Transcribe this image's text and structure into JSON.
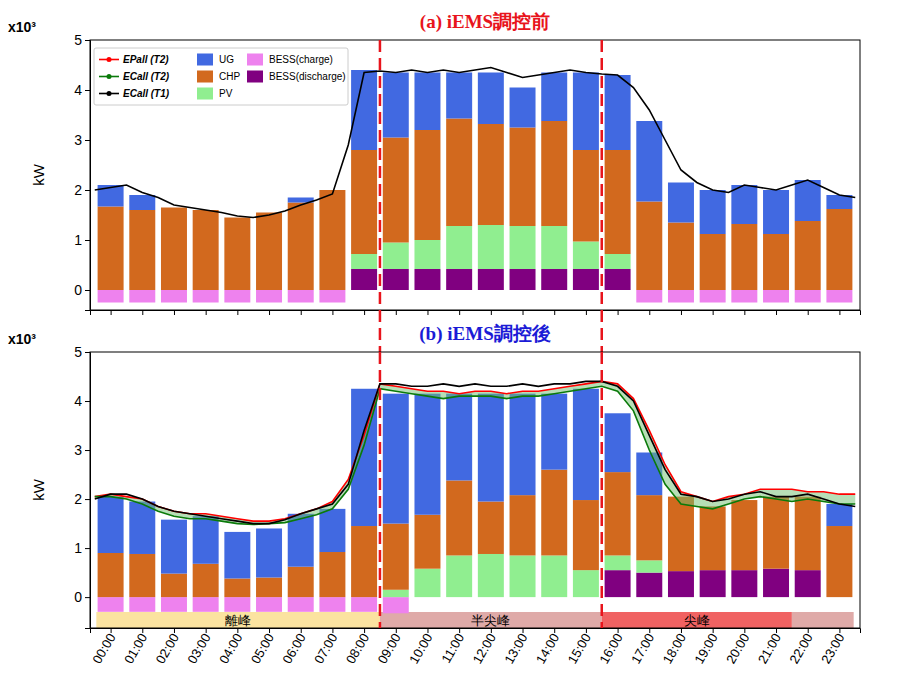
{
  "chart_data": [
    {
      "type": "bar",
      "title": "(a) iEMS調控前",
      "ylabel": "kW",
      "annotations": [
        "x10³"
      ],
      "stacked": true,
      "legend": "upper left",
      "tick_labels": "y",
      "categories": [
        "00:00",
        "01:00",
        "02:00",
        "03:00",
        "04:00",
        "05:00",
        "06:00",
        "07:00",
        "08:00",
        "09:00",
        "10:00",
        "11:00",
        "12:00",
        "13:00",
        "14:00",
        "15:00",
        "16:00",
        "17:00",
        "18:00",
        "19:00",
        "20:00",
        "21:00",
        "22:00",
        "23:00"
      ],
      "xlim": [
        -0.65,
        23.65
      ],
      "ylim": [
        -0.4,
        5
      ],
      "yticks": [
        0,
        1,
        2,
        3,
        4,
        5
      ],
      "vlines": [
        8.5,
        15.5
      ],
      "series": [
        {
          "name": "EPall (T2)",
          "type": "line",
          "color": "#ff0000",
          "x": [],
          "values": []
        },
        {
          "name": "ECall (T2)",
          "type": "line",
          "color": "#0a7a0a",
          "x": [],
          "values": []
        },
        {
          "name": "ECall (T1)",
          "type": "line",
          "color": "#000000",
          "x": [
            -0.5,
            0,
            0.5,
            1,
            1.5,
            2,
            2.5,
            3,
            3.5,
            4,
            4.5,
            5,
            5.5,
            6,
            6.5,
            7,
            7.5,
            8,
            8.5,
            9,
            9.5,
            10,
            10.5,
            11,
            11.5,
            12,
            12.5,
            13,
            13.5,
            14,
            14.5,
            15,
            15.5,
            16,
            16.5,
            17,
            17.5,
            18,
            18.5,
            19,
            19.5,
            20,
            20.5,
            21,
            21.5,
            22,
            22.5,
            23,
            23.5
          ],
          "values": [
            2.0,
            2.05,
            2.1,
            1.95,
            1.85,
            1.7,
            1.65,
            1.6,
            1.55,
            1.48,
            1.45,
            1.5,
            1.58,
            1.7,
            1.8,
            1.92,
            2.9,
            4.35,
            4.38,
            4.35,
            4.4,
            4.35,
            4.4,
            4.35,
            4.4,
            4.45,
            4.35,
            4.25,
            4.3,
            4.35,
            4.4,
            4.35,
            4.32,
            4.3,
            4.05,
            3.6,
            3.0,
            2.4,
            2.15,
            2.0,
            1.95,
            2.1,
            2.05,
            2.0,
            2.1,
            2.2,
            2.05,
            1.9,
            1.85
          ]
        },
        {
          "name": "UG",
          "color": "#4169e1",
          "values": [
            0.43,
            0.3,
            null,
            null,
            null,
            null,
            0.1,
            null,
            1.6,
            1.3,
            1.15,
            0.92,
            1.03,
            0.8,
            0.97,
            1.55,
            1.5,
            1.61,
            0.8,
            0.88,
            0.78,
            0.88,
            0.82,
            0.28
          ]
        },
        {
          "name": "CHP",
          "color": "#d2691e",
          "values": [
            1.67,
            1.6,
            1.65,
            1.6,
            1.45,
            1.55,
            1.75,
            2.0,
            2.08,
            2.1,
            2.2,
            2.15,
            2.02,
            1.97,
            2.1,
            1.83,
            2.08,
            1.77,
            1.35,
            1.12,
            1.32,
            1.12,
            1.38,
            1.62
          ]
        },
        {
          "name": "PV",
          "color": "#90ee90",
          "values": [
            null,
            null,
            null,
            null,
            null,
            null,
            null,
            null,
            0.3,
            0.53,
            0.58,
            0.86,
            0.88,
            0.86,
            0.86,
            0.55,
            0.3,
            null,
            null,
            null,
            null,
            null,
            null,
            null
          ]
        },
        {
          "name": "BESS(charge)",
          "color": "#ee82ee",
          "values": [
            -0.25,
            -0.25,
            -0.25,
            -0.25,
            -0.25,
            -0.25,
            -0.25,
            -0.25,
            null,
            null,
            null,
            null,
            null,
            null,
            null,
            null,
            null,
            -0.25,
            -0.25,
            -0.25,
            -0.25,
            -0.25,
            -0.25,
            -0.25
          ]
        },
        {
          "name": "BESS(discharge)",
          "color": "#800080",
          "values": [
            null,
            null,
            null,
            null,
            null,
            null,
            null,
            null,
            0.42,
            0.42,
            0.42,
            0.42,
            0.42,
            0.42,
            0.42,
            0.42,
            0.42,
            null,
            null,
            null,
            null,
            null,
            null,
            null
          ]
        }
      ]
    },
    {
      "type": "bar",
      "title": "(b) iEMS調控後",
      "ylabel": "kW",
      "annotations": [
        "x10³"
      ],
      "stacked": true,
      "categories": [
        "00:00",
        "01:00",
        "02:00",
        "03:00",
        "04:00",
        "05:00",
        "06:00",
        "07:00",
        "08:00",
        "09:00",
        "10:00",
        "11:00",
        "12:00",
        "13:00",
        "14:00",
        "15:00",
        "16:00",
        "17:00",
        "18:00",
        "19:00",
        "20:00",
        "21:00",
        "22:00",
        "23:00"
      ],
      "xlim": [
        -0.65,
        23.65
      ],
      "ylim": [
        -0.63,
        5
      ],
      "yticks": [
        0,
        1,
        2,
        3,
        4,
        5
      ],
      "vlines": [
        8.5,
        15.5
      ],
      "periods": [
        {
          "label": "離峰",
          "start": -0.45,
          "end": 8.5,
          "color": "#fbe3a0"
        },
        {
          "label": "半尖峰",
          "start": 8.5,
          "end": 15.5,
          "color": "#dfaaa8"
        },
        {
          "label": "尖峰",
          "start": 15.5,
          "end": 21.5,
          "color": "#f06262"
        },
        {
          "label": null,
          "start": 21.5,
          "end": 23.45,
          "color": "#dfaaa8"
        }
      ],
      "series": [
        {
          "name": "EPall (T2)",
          "type": "line",
          "color": "#ff0000",
          "x": [
            -0.5,
            0,
            0.5,
            1,
            1.5,
            2,
            2.5,
            3,
            3.5,
            4,
            4.5,
            5,
            5.5,
            6,
            6.5,
            7,
            7.5,
            8,
            8.5,
            9,
            9.5,
            10,
            10.5,
            11,
            11.5,
            12,
            12.5,
            13,
            13.5,
            14,
            14.5,
            15,
            15.5,
            16,
            16.5,
            17,
            17.5,
            18,
            18.5,
            19,
            19.5,
            20,
            20.5,
            21,
            21.5,
            22,
            22.5,
            23,
            23.5
          ],
          "values": [
            2.05,
            2.1,
            2.05,
            2.0,
            1.85,
            1.75,
            1.7,
            1.7,
            1.65,
            1.6,
            1.55,
            1.55,
            1.6,
            1.7,
            1.8,
            1.95,
            2.4,
            3.3,
            4.35,
            4.3,
            4.25,
            4.2,
            4.2,
            4.15,
            4.2,
            4.2,
            4.15,
            4.2,
            4.2,
            4.25,
            4.3,
            4.35,
            4.4,
            4.35,
            4.05,
            3.4,
            2.7,
            2.15,
            2.05,
            1.95,
            2.05,
            2.1,
            2.2,
            2.2,
            2.2,
            2.15,
            2.15,
            2.1,
            2.1
          ]
        },
        {
          "name": "ECall (T2)",
          "type": "line",
          "color": "#0a7a0a",
          "x": [
            -0.5,
            0,
            0.5,
            1,
            1.5,
            2,
            2.5,
            3,
            3.5,
            4,
            4.5,
            5,
            5.5,
            6,
            6.5,
            7,
            7.5,
            8,
            8.5,
            9,
            9.5,
            10,
            10.5,
            11,
            11.5,
            12,
            12.5,
            13,
            13.5,
            14,
            14.5,
            15,
            15.5,
            16,
            16.5,
            17,
            17.5,
            18,
            18.5,
            19,
            19.5,
            20,
            20.5,
            21,
            21.5,
            22,
            22.5,
            23,
            23.5
          ],
          "values": [
            2.05,
            2.05,
            2.0,
            1.9,
            1.75,
            1.65,
            1.6,
            1.6,
            1.55,
            1.5,
            1.48,
            1.5,
            1.52,
            1.6,
            1.68,
            1.8,
            2.2,
            3.1,
            4.25,
            4.2,
            4.15,
            4.1,
            4.05,
            4.1,
            4.1,
            4.1,
            4.05,
            4.1,
            4.1,
            4.15,
            4.2,
            4.25,
            4.3,
            4.2,
            3.8,
            3.0,
            2.3,
            1.9,
            1.85,
            1.8,
            1.9,
            2.0,
            2.05,
            2.0,
            1.95,
            2.0,
            1.95,
            1.9,
            1.9
          ]
        },
        {
          "name": "ECall (T1)",
          "type": "line",
          "color": "#000000",
          "x": [
            -0.5,
            0,
            0.5,
            1,
            1.5,
            2,
            2.5,
            3,
            3.5,
            4,
            4.5,
            5,
            5.5,
            6,
            6.5,
            7,
            7.5,
            8,
            8.5,
            9,
            9.5,
            10,
            10.5,
            11,
            11.5,
            12,
            12.5,
            13,
            13.5,
            14,
            14.5,
            15,
            15.5,
            16,
            16.5,
            17,
            17.5,
            18,
            18.5,
            19,
            19.5,
            20,
            20.5,
            21,
            21.5,
            22,
            22.5,
            23,
            23.5
          ],
          "values": [
            2.0,
            2.1,
            2.1,
            2.0,
            1.85,
            1.75,
            1.7,
            1.65,
            1.6,
            1.55,
            1.5,
            1.5,
            1.58,
            1.7,
            1.8,
            1.9,
            2.3,
            3.4,
            4.35,
            4.35,
            4.3,
            4.3,
            4.35,
            4.3,
            4.35,
            4.3,
            4.3,
            4.35,
            4.3,
            4.35,
            4.35,
            4.4,
            4.4,
            4.3,
            4.0,
            3.3,
            2.6,
            2.1,
            2.05,
            1.95,
            2.0,
            2.1,
            2.15,
            2.05,
            2.05,
            2.1,
            2.0,
            1.9,
            1.85
          ]
        },
        {
          "name": "UG",
          "color": "#4169e1",
          "values": [
            1.15,
            1.07,
            1.1,
            0.97,
            0.95,
            1.0,
            1.08,
            0.88,
            2.8,
            2.65,
            2.47,
            1.77,
            2.2,
            2.07,
            1.55,
            2.27,
            1.2,
            0.87,
            null,
            null,
            null,
            null,
            null,
            0.45
          ]
        },
        {
          "name": "CHP",
          "color": "#d2691e",
          "values": [
            0.9,
            0.88,
            0.48,
            0.68,
            0.38,
            0.4,
            0.62,
            0.92,
            1.45,
            1.35,
            1.1,
            1.53,
            1.07,
            1.23,
            1.75,
            1.43,
            1.7,
            1.33,
            1.52,
            1.3,
            1.43,
            1.47,
            1.5,
            1.45
          ]
        },
        {
          "name": "PV",
          "color": "#90ee90",
          "values": [
            null,
            null,
            null,
            null,
            null,
            null,
            null,
            null,
            null,
            0.15,
            0.58,
            0.85,
            0.88,
            0.85,
            0.85,
            0.55,
            0.3,
            0.25,
            null,
            null,
            null,
            null,
            null,
            null
          ]
        },
        {
          "name": "BESS(charge)",
          "color": "#ee82ee",
          "values": [
            -0.3,
            -0.3,
            -0.3,
            -0.3,
            -0.3,
            -0.3,
            -0.3,
            -0.3,
            -0.3,
            -0.33,
            null,
            null,
            null,
            null,
            null,
            null,
            null,
            null,
            null,
            null,
            null,
            null,
            null,
            null
          ]
        },
        {
          "name": "BESS(discharge)",
          "color": "#800080",
          "values": [
            null,
            null,
            null,
            null,
            null,
            null,
            null,
            null,
            null,
            null,
            null,
            null,
            null,
            null,
            null,
            null,
            0.55,
            0.5,
            0.53,
            0.55,
            0.55,
            0.58,
            0.55,
            null
          ]
        }
      ]
    }
  ]
}
